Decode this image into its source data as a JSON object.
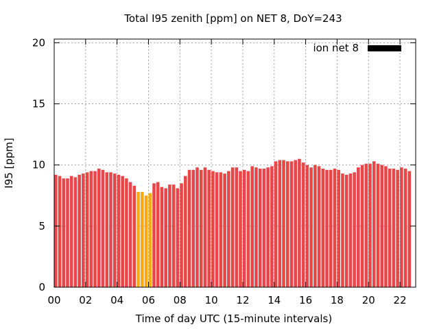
{
  "chart_data": {
    "type": "bar",
    "title": "Total I95 zenith [ppm] on NET 8, DoY=243",
    "xlabel": "Time of day UTC (15-minute intervals)",
    "ylabel": "I95 [ppm]",
    "ylim": [
      0,
      20.3
    ],
    "xlim": [
      0,
      23
    ],
    "bar_interval_hours": 0.25,
    "y_ticks": [
      "0",
      "5",
      "10",
      "15",
      "20"
    ],
    "x_ticks": [
      "00",
      "02",
      "04",
      "06",
      "08",
      "10",
      "12",
      "14",
      "16",
      "18",
      "20",
      "22"
    ],
    "grid": true,
    "legend": {
      "position": "top-right",
      "entries": [
        {
          "label": "ion net 8",
          "color": "#000000"
        }
      ]
    },
    "colors": {
      "normal": "#e8474a",
      "highlight": "#fbaa13"
    },
    "series": [
      {
        "name": "ion net 8",
        "values": [
          9.2,
          9.1,
          8.9,
          8.9,
          9.1,
          9.0,
          9.2,
          9.3,
          9.4,
          9.5,
          9.5,
          9.7,
          9.6,
          9.4,
          9.4,
          9.3,
          9.2,
          9.1,
          8.9,
          8.6,
          8.3,
          7.8,
          7.8,
          7.5,
          7.7,
          8.5,
          8.6,
          8.2,
          8.1,
          8.4,
          8.4,
          8.1,
          8.5,
          9.1,
          9.6,
          9.6,
          9.8,
          9.6,
          9.8,
          9.6,
          9.5,
          9.4,
          9.4,
          9.3,
          9.5,
          9.8,
          9.8,
          9.5,
          9.6,
          9.5,
          9.9,
          9.8,
          9.7,
          9.7,
          9.8,
          9.9,
          10.3,
          10.4,
          10.4,
          10.3,
          10.3,
          10.4,
          10.5,
          10.2,
          10.0,
          9.8,
          10.0,
          9.9,
          9.7,
          9.6,
          9.6,
          9.7,
          9.6,
          9.3,
          9.2,
          9.3,
          9.4,
          9.8,
          10.0,
          10.1,
          10.1,
          10.3,
          10.1,
          10.0,
          9.9,
          9.7,
          9.7,
          9.6,
          9.8,
          9.7,
          9.5
        ],
        "highlight_indices": [
          21,
          22,
          23,
          24
        ]
      }
    ]
  }
}
